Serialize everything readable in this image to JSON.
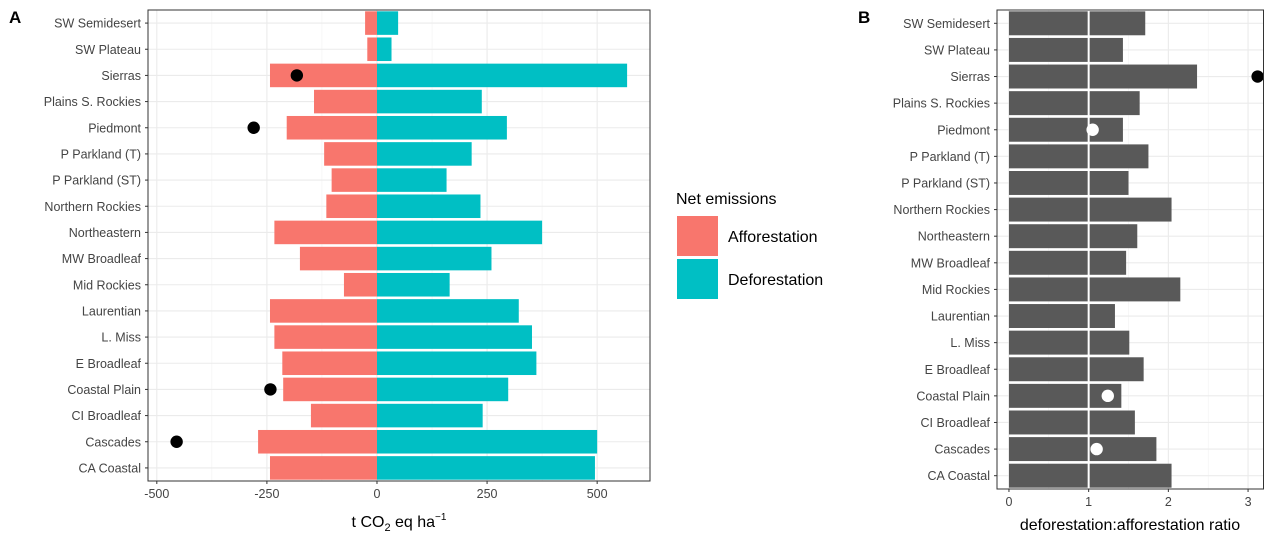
{
  "chart_data": [
    {
      "panel": "A",
      "type": "bar",
      "orientation": "horizontal",
      "categories": [
        "CA Coastal",
        "Cascades",
        "CI Broadleaf",
        "Coastal Plain",
        "E Broadleaf",
        "L. Miss",
        "Laurentian",
        "Mid Rockies",
        "MW Broadleaf",
        "Northeastern",
        "Northern Rockies",
        "P Parkland (ST)",
        "P Parkland (T)",
        "Piedmont",
        "Plains S. Rockies",
        "Sierras",
        "SW Plateau",
        "SW Semidesert"
      ],
      "series": [
        {
          "name": "Afforestation",
          "color": "#F8766D",
          "values": [
            -243,
            -270,
            -150,
            -213,
            -215,
            -233,
            -243,
            -75,
            -175,
            -233,
            -115,
            -103,
            -120,
            -205,
            -143,
            -243,
            -22,
            -27
          ]
        },
        {
          "name": "Deforestation",
          "color": "#00BFC4",
          "values": [
            495,
            500,
            240,
            298,
            362,
            352,
            322,
            165,
            260,
            375,
            235,
            158,
            215,
            295,
            238,
            568,
            33,
            48
          ]
        }
      ],
      "points": [
        {
          "category": "Cascades",
          "value": -455
        },
        {
          "category": "Coastal Plain",
          "value": -242
        },
        {
          "category": "Piedmont",
          "value": -280
        },
        {
          "category": "Sierras",
          "value": -182
        }
      ],
      "xlabel_main": "t CO",
      "xlabel_sub": "2",
      "xlabel_rest": " eq  ha",
      "xlabel_sup": "−1",
      "xlim": [
        -520,
        620
      ],
      "ticks": [
        -500,
        -250,
        0,
        250,
        500
      ],
      "tick_labels": [
        "-500",
        "-250",
        "0",
        "250",
        "500"
      ],
      "legend": {
        "title": "Net emissions",
        "entries": [
          "Afforestation",
          "Deforestation"
        ],
        "placement": "right"
      },
      "grid": true
    },
    {
      "panel": "B",
      "type": "bar",
      "orientation": "horizontal",
      "categories": [
        "CA Coastal",
        "Cascades",
        "CI Broadleaf",
        "Coastal Plain",
        "E Broadleaf",
        "L. Miss",
        "Laurentian",
        "Mid Rockies",
        "MW Broadleaf",
        "Northeastern",
        "Northern Rockies",
        "P Parkland (ST)",
        "P Parkland (T)",
        "Piedmont",
        "Plains S. Rockies",
        "Sierras",
        "SW Plateau",
        "SW Semidesert"
      ],
      "values": [
        2.04,
        1.85,
        1.58,
        1.41,
        1.69,
        1.51,
        1.33,
        2.15,
        1.47,
        1.61,
        2.04,
        1.5,
        1.75,
        1.43,
        1.64,
        2.36,
        1.43,
        1.71
      ],
      "bar_color": "#595959",
      "points": [
        {
          "category": "Cascades",
          "value": 1.1,
          "color": "#ffffff"
        },
        {
          "category": "Coastal Plain",
          "value": 1.24,
          "color": "#ffffff"
        },
        {
          "category": "Piedmont",
          "value": 1.05,
          "color": "#ffffff"
        },
        {
          "category": "Sierras",
          "value": 3.12,
          "color": "#000000"
        }
      ],
      "xlabel": "deforestation:afforestation ratio",
      "xlim": [
        -0.15,
        3.2
      ],
      "ticks": [
        0,
        1,
        2,
        3
      ],
      "tick_labels": [
        "0",
        "1",
        "2",
        "3"
      ],
      "grid": true
    }
  ],
  "panel_labels": {
    "a": "A",
    "b": "B"
  }
}
